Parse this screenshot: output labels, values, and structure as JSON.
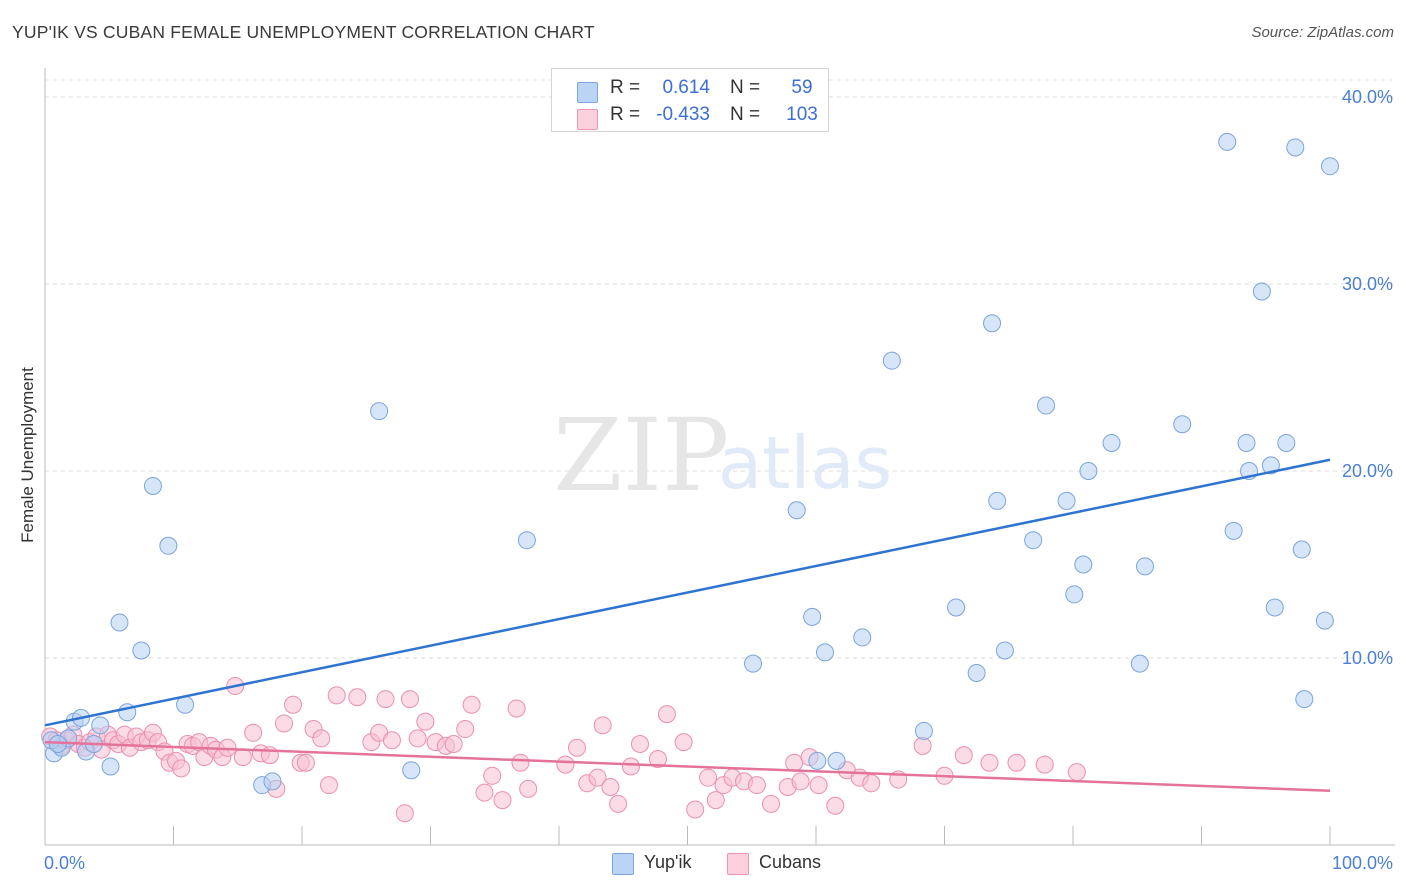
{
  "header": {
    "title": "YUP'IK VS CUBAN FEMALE UNEMPLOYMENT CORRELATION CHART",
    "source": "Source: ZipAtlas.com"
  },
  "watermark": {
    "zip": "ZIP",
    "atlas": "atlas"
  },
  "legend": {
    "r_label": "R =",
    "n_label": "N =",
    "rows": [
      {
        "name": "Yup'ik",
        "r": "0.614",
        "n": "59",
        "color": "#a9c7ee",
        "edge": "#7da6e0"
      },
      {
        "name": "Cubans",
        "r": "-0.433",
        "n": "103",
        "color": "#f6b9cc",
        "edge": "#ef94b1"
      }
    ]
  },
  "chart_data": {
    "type": "scatter",
    "title": "YUP'IK VS CUBAN FEMALE UNEMPLOYMENT CORRELATION CHART",
    "xlabel": "",
    "ylabel": "Female Unemployment",
    "xlim": [
      0,
      100
    ],
    "ylim": [
      0,
      40
    ],
    "x_tick_labels": [
      "0.0%",
      "100.0%"
    ],
    "y_ticks": [
      10,
      20,
      30,
      40
    ],
    "y_tick_labels": [
      "10.0%",
      "20.0%",
      "30.0%",
      "40.0%"
    ],
    "grid": true,
    "colors": {
      "yupik_line": "#2f74d0",
      "cubans_line": "#e4739c"
    },
    "series": [
      {
        "name": "Yup'ik",
        "r": 0.614,
        "n": 59,
        "trend": {
          "x": [
            0,
            100
          ],
          "y": [
            6.4,
            20.6
          ]
        },
        "points": [
          [
            0.7,
            4.9
          ],
          [
            1.3,
            5.2
          ],
          [
            1.8,
            5.7
          ],
          [
            2.3,
            6.6
          ],
          [
            2.8,
            6.8
          ],
          [
            3.2,
            5.0
          ],
          [
            3.8,
            5.4
          ],
          [
            4.3,
            6.4
          ],
          [
            5.1,
            4.2
          ],
          [
            5.8,
            11.9
          ],
          [
            6.4,
            7.1
          ],
          [
            7.5,
            10.4
          ],
          [
            8.4,
            19.2
          ],
          [
            9.6,
            16.0
          ],
          [
            10.9,
            7.5
          ],
          [
            16.9,
            3.2
          ],
          [
            17.7,
            3.4
          ],
          [
            26.0,
            23.2
          ],
          [
            28.5,
            4.0
          ],
          [
            37.5,
            16.3
          ],
          [
            55.1,
            9.7
          ],
          [
            58.5,
            17.9
          ],
          [
            59.7,
            12.2
          ],
          [
            60.1,
            4.5
          ],
          [
            60.7,
            10.3
          ],
          [
            61.6,
            4.5
          ],
          [
            63.6,
            11.1
          ],
          [
            65.9,
            25.9
          ],
          [
            68.4,
            6.1
          ],
          [
            70.9,
            12.7
          ],
          [
            72.5,
            9.2
          ],
          [
            73.7,
            27.9
          ],
          [
            74.1,
            18.4
          ],
          [
            74.7,
            10.4
          ],
          [
            76.9,
            16.3
          ],
          [
            77.9,
            23.5
          ],
          [
            79.5,
            18.4
          ],
          [
            80.1,
            13.4
          ],
          [
            80.8,
            15.0
          ],
          [
            81.2,
            20.0
          ],
          [
            83.0,
            21.5
          ],
          [
            85.2,
            9.7
          ],
          [
            85.6,
            14.9
          ],
          [
            88.5,
            22.5
          ],
          [
            92.0,
            37.6
          ],
          [
            92.5,
            16.8
          ],
          [
            93.5,
            21.5
          ],
          [
            93.7,
            20.0
          ],
          [
            94.7,
            29.6
          ],
          [
            95.4,
            20.3
          ],
          [
            95.7,
            12.7
          ],
          [
            96.6,
            21.5
          ],
          [
            97.3,
            37.3
          ],
          [
            97.8,
            15.8
          ],
          [
            98.0,
            7.8
          ],
          [
            99.6,
            12.0
          ],
          [
            100.0,
            36.3
          ],
          [
            0.5,
            5.6
          ],
          [
            1.0,
            5.4
          ]
        ]
      },
      {
        "name": "Cubans",
        "r": -0.433,
        "n": 103,
        "trend": {
          "x": [
            0,
            100
          ],
          "y": [
            5.5,
            2.9
          ]
        },
        "points": [
          [
            0.4,
            5.8
          ],
          [
            0.9,
            5.6
          ],
          [
            1.3,
            5.3
          ],
          [
            1.7,
            5.6
          ],
          [
            2.2,
            5.9
          ],
          [
            2.6,
            5.4
          ],
          [
            3.1,
            5.2
          ],
          [
            3.5,
            5.5
          ],
          [
            4.0,
            5.8
          ],
          [
            4.4,
            5.1
          ],
          [
            4.9,
            5.9
          ],
          [
            5.3,
            5.6
          ],
          [
            5.7,
            5.4
          ],
          [
            6.2,
            5.9
          ],
          [
            6.6,
            5.2
          ],
          [
            7.1,
            5.8
          ],
          [
            7.5,
            5.5
          ],
          [
            8.0,
            5.6
          ],
          [
            8.4,
            6.0
          ],
          [
            8.8,
            5.5
          ],
          [
            9.3,
            5.0
          ],
          [
            9.7,
            4.4
          ],
          [
            10.2,
            4.5
          ],
          [
            10.6,
            4.1
          ],
          [
            11.1,
            5.4
          ],
          [
            11.5,
            5.3
          ],
          [
            12.0,
            5.5
          ],
          [
            12.4,
            4.7
          ],
          [
            12.9,
            5.3
          ],
          [
            13.3,
            5.1
          ],
          [
            13.8,
            4.7
          ],
          [
            14.2,
            5.2
          ],
          [
            14.8,
            8.5
          ],
          [
            15.4,
            4.7
          ],
          [
            16.2,
            6.0
          ],
          [
            16.8,
            4.9
          ],
          [
            17.5,
            4.8
          ],
          [
            18.0,
            3.0
          ],
          [
            18.6,
            6.5
          ],
          [
            19.3,
            7.5
          ],
          [
            19.9,
            4.4
          ],
          [
            20.3,
            4.4
          ],
          [
            20.9,
            6.2
          ],
          [
            21.5,
            5.7
          ],
          [
            22.1,
            3.2
          ],
          [
            22.7,
            8.0
          ],
          [
            24.3,
            7.9
          ],
          [
            25.4,
            5.5
          ],
          [
            26.0,
            6.0
          ],
          [
            27.0,
            5.6
          ],
          [
            26.5,
            7.8
          ],
          [
            28.0,
            1.7
          ],
          [
            28.4,
            7.8
          ],
          [
            29.0,
            5.7
          ],
          [
            29.6,
            6.6
          ],
          [
            30.4,
            5.5
          ],
          [
            31.2,
            5.3
          ],
          [
            31.8,
            5.4
          ],
          [
            32.7,
            6.2
          ],
          [
            33.2,
            7.5
          ],
          [
            34.2,
            2.8
          ],
          [
            34.8,
            3.7
          ],
          [
            35.6,
            2.4
          ],
          [
            36.7,
            7.3
          ],
          [
            37.0,
            4.4
          ],
          [
            37.6,
            3.0
          ],
          [
            40.5,
            4.3
          ],
          [
            41.4,
            5.2
          ],
          [
            42.2,
            3.3
          ],
          [
            43.0,
            3.6
          ],
          [
            44.0,
            3.1
          ],
          [
            43.4,
            6.4
          ],
          [
            44.6,
            2.2
          ],
          [
            45.6,
            4.2
          ],
          [
            46.3,
            5.4
          ],
          [
            47.7,
            4.6
          ],
          [
            48.4,
            7.0
          ],
          [
            49.7,
            5.5
          ],
          [
            50.6,
            1.9
          ],
          [
            51.6,
            3.6
          ],
          [
            52.2,
            2.4
          ],
          [
            52.8,
            3.2
          ],
          [
            53.5,
            3.6
          ],
          [
            54.4,
            3.4
          ],
          [
            55.4,
            3.2
          ],
          [
            56.5,
            2.2
          ],
          [
            57.8,
            3.1
          ],
          [
            58.3,
            4.4
          ],
          [
            58.8,
            3.4
          ],
          [
            59.5,
            4.7
          ],
          [
            60.2,
            3.2
          ],
          [
            61.5,
            2.1
          ],
          [
            62.4,
            4.0
          ],
          [
            63.4,
            3.6
          ],
          [
            64.3,
            3.3
          ],
          [
            66.4,
            3.5
          ],
          [
            68.3,
            5.3
          ],
          [
            70.0,
            3.7
          ],
          [
            71.5,
            4.8
          ],
          [
            73.5,
            4.4
          ],
          [
            75.6,
            4.4
          ],
          [
            77.8,
            4.3
          ],
          [
            80.3,
            3.9
          ]
        ]
      }
    ]
  }
}
